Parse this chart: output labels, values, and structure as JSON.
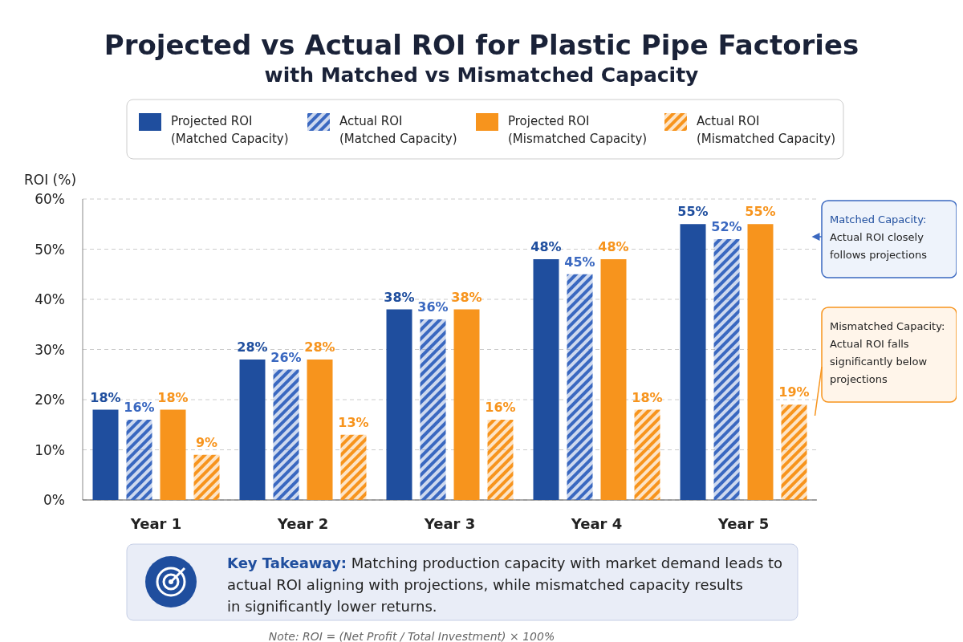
{
  "chart_data": {
    "type": "bar",
    "title": "Projected vs Actual ROI for Plastic Pipe Factories",
    "subtitle": "with Matched vs Mismatched Capacity",
    "ylabel": "ROI (%)",
    "categories": [
      "Year 1",
      "Year 2",
      "Year 3",
      "Year 4",
      "Year 5"
    ],
    "series": [
      {
        "name": "Projected ROI (Matched Capacity)",
        "color": "#1f4e9e",
        "values": [
          18,
          28,
          38,
          48,
          55
        ],
        "value_labels": [
          "18%",
          "28%",
          "38%",
          "48%",
          "55%"
        ]
      },
      {
        "name": "Actual ROI (Matched Capacity)",
        "color": "#3a68c0",
        "values": [
          16,
          26,
          36,
          45,
          52
        ],
        "value_labels": [
          "16%",
          "26%",
          "36%",
          "45%",
          "52%"
        ]
      },
      {
        "name": "Projected ROI (Mismatched Capacity)",
        "color": "#f7941d",
        "values": [
          18,
          28,
          38,
          48,
          55
        ],
        "value_labels": [
          "18%",
          "28%",
          "38%",
          "48%",
          "55%"
        ]
      },
      {
        "name": "Actual ROI (Mismatched Capacity)",
        "color": "#f7941d",
        "values": [
          9,
          13,
          16,
          18,
          19
        ],
        "value_labels": [
          "9%",
          "13%",
          "16%",
          "18%",
          "19%"
        ]
      }
    ],
    "ylim": [
      0,
      60
    ],
    "yticks": [
      {
        "value": 0,
        "label": "0%"
      },
      {
        "value": 10,
        "label": "10%"
      },
      {
        "value": 20,
        "label": "20%"
      },
      {
        "value": 30,
        "label": "30%"
      },
      {
        "value": 40,
        "label": "40%"
      },
      {
        "value": 50,
        "label": "50%"
      },
      {
        "value": 60,
        "label": "60%"
      }
    ],
    "grid": "y",
    "legend": "top",
    "annotations": [
      "Matched Capacity: Actual ROI closely follows projections",
      "Mismatched Capacity: Actual ROI falls significantly below projections",
      "Key Takeaway: Matching production capacity with market demand leads to actual ROI aligning with projections, while mismatched capacity results in significantly lower returns.",
      "Note: ROI = (Net Profit / Total Investment) × 100%"
    ]
  }
}
